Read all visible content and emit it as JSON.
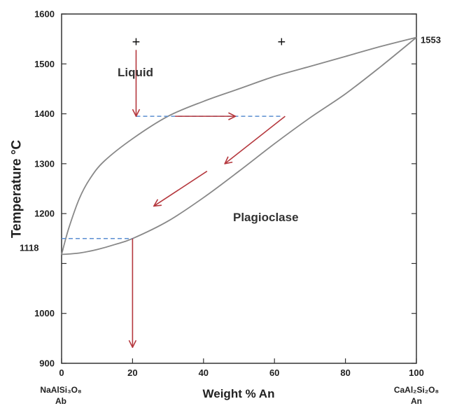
{
  "chart_data": {
    "type": "phase-diagram",
    "xlabel": "Weight % An",
    "ylabel": "Temperature °C",
    "xlim": [
      0,
      100
    ],
    "ylim": [
      900,
      1600
    ],
    "x_ticks": [
      "0",
      "20",
      "40",
      "60",
      "80",
      "100"
    ],
    "y_ticks": [
      "900",
      "1000",
      "1100",
      "1200",
      "1300",
      "1400",
      "1500",
      "1600"
    ],
    "y_ticks_minor": [
      1100
    ],
    "y_ticks_major": [
      900,
      1000,
      1200,
      1300,
      1400,
      1500,
      1600
    ],
    "special_labels": {
      "left_melting_point": "1118",
      "right_melting_point": "1553"
    },
    "melting_points": {
      "Ab": 1118,
      "An": 1553
    },
    "regions": {
      "liquid": "Liquid",
      "solid": "Plagioclase"
    },
    "endmembers": {
      "left_formula": "NaAlSi₃O₈",
      "left_abbr": "Ab",
      "right_formula": "CaAl₂Si₂O₈",
      "right_abbr": "An"
    },
    "liquidus": [
      [
        0,
        1118
      ],
      [
        2,
        1170
      ],
      [
        5,
        1230
      ],
      [
        8,
        1270
      ],
      [
        12,
        1305
      ],
      [
        20,
        1350
      ],
      [
        30,
        1395
      ],
      [
        40,
        1425
      ],
      [
        50,
        1450
      ],
      [
        60,
        1475
      ],
      [
        70,
        1495
      ],
      [
        80,
        1515
      ],
      [
        90,
        1535
      ],
      [
        100,
        1553
      ]
    ],
    "solidus": [
      [
        0,
        1118
      ],
      [
        5,
        1121
      ],
      [
        10,
        1128
      ],
      [
        15,
        1138
      ],
      [
        20,
        1150
      ],
      [
        30,
        1185
      ],
      [
        40,
        1232
      ],
      [
        50,
        1285
      ],
      [
        60,
        1340
      ],
      [
        70,
        1392
      ],
      [
        80,
        1440
      ],
      [
        90,
        1495
      ],
      [
        100,
        1553
      ]
    ],
    "plus_markers": [
      [
        21,
        1543
      ],
      [
        62,
        1543
      ]
    ],
    "tie_lines": [
      {
        "x1": 21,
        "x2": 62,
        "y": 1395
      },
      {
        "x1": 0,
        "x2": 20,
        "y": 1150
      }
    ],
    "arrows": [
      {
        "from": [
          21,
          1528
        ],
        "to": [
          21,
          1395
        ]
      },
      {
        "from": [
          32,
          1395
        ],
        "to": [
          49,
          1395
        ]
      },
      {
        "from": [
          63,
          1395
        ],
        "to": [
          46,
          1300
        ]
      },
      {
        "from": [
          41,
          1285
        ],
        "to": [
          26,
          1215
        ]
      },
      {
        "from": [
          20,
          1150
        ],
        "to": [
          20,
          932
        ]
      }
    ],
    "colors": {
      "curve": "#888888",
      "axis": "#333333",
      "tie_line": "#5b8fd1",
      "arrow": "#b5383e"
    }
  }
}
